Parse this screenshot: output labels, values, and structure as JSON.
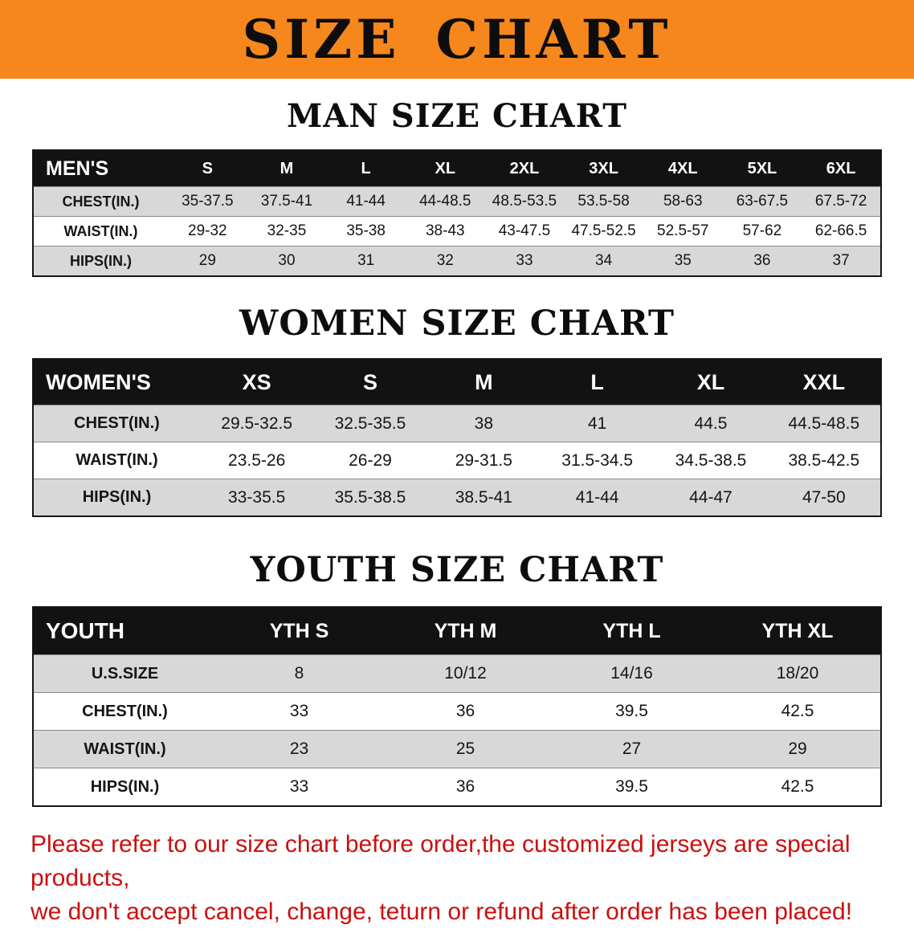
{
  "colors": {
    "banner_orange": "#f6871d",
    "table_header_black": "#121212",
    "row_gray": "#d8d8d8",
    "footer_red": "#cb0f0f"
  },
  "banner": {
    "title": "SIZE CHART"
  },
  "sections": [
    {
      "id": "men",
      "heading": "MAN SIZE CHART",
      "table": {
        "header": [
          "MEN'S",
          "S",
          "M",
          "L",
          "XL",
          "2XL",
          "3XL",
          "4XL",
          "5XL",
          "6XL"
        ],
        "rows": [
          [
            "CHEST(IN.)",
            "35-37.5",
            "37.5-41",
            "41-44",
            "44-48.5",
            "48.5-53.5",
            "53.5-58",
            "58-63",
            "63-67.5",
            "67.5-72"
          ],
          [
            "WAIST(IN.)",
            "29-32",
            "32-35",
            "35-38",
            "38-43",
            "43-47.5",
            "47.5-52.5",
            "52.5-57",
            "57-62",
            "62-66.5"
          ],
          [
            "HIPS(IN.)",
            "29",
            "30",
            "31",
            "32",
            "33",
            "34",
            "35",
            "36",
            "37"
          ]
        ]
      }
    },
    {
      "id": "women",
      "heading": "WOMEN SIZE CHART",
      "table": {
        "header": [
          "WOMEN'S",
          "XS",
          "S",
          "M",
          "L",
          "XL",
          "XXL"
        ],
        "rows": [
          [
            "CHEST(IN.)",
            "29.5-32.5",
            "32.5-35.5",
            "38",
            "41",
            "44.5",
            "44.5-48.5"
          ],
          [
            "WAIST(IN.)",
            "23.5-26",
            "26-29",
            "29-31.5",
            "31.5-34.5",
            "34.5-38.5",
            "38.5-42.5"
          ],
          [
            "HIPS(IN.)",
            "33-35.5",
            "35.5-38.5",
            "38.5-41",
            "41-44",
            "44-47",
            "47-50"
          ]
        ]
      }
    },
    {
      "id": "youth",
      "heading": "YOUTH SIZE CHART",
      "table": {
        "header": [
          "YOUTH",
          "YTH S",
          "YTH M",
          "YTH L",
          "YTH XL"
        ],
        "rows": [
          [
            "U.S.SIZE",
            "8",
            "10/12",
            "14/16",
            "18/20"
          ],
          [
            "CHEST(IN.)",
            "33",
            "36",
            "39.5",
            "42.5"
          ],
          [
            "WAIST(IN.)",
            "23",
            "25",
            "27",
            "29"
          ],
          [
            "HIPS(IN.)",
            "33",
            "36",
            "39.5",
            "42.5"
          ]
        ]
      }
    }
  ],
  "footer": {
    "line1": "Please refer to our size chart before order,the customized jerseys are special products,",
    "line2": "we don't accept cancel, change, teturn or refund after order has been placed!"
  }
}
